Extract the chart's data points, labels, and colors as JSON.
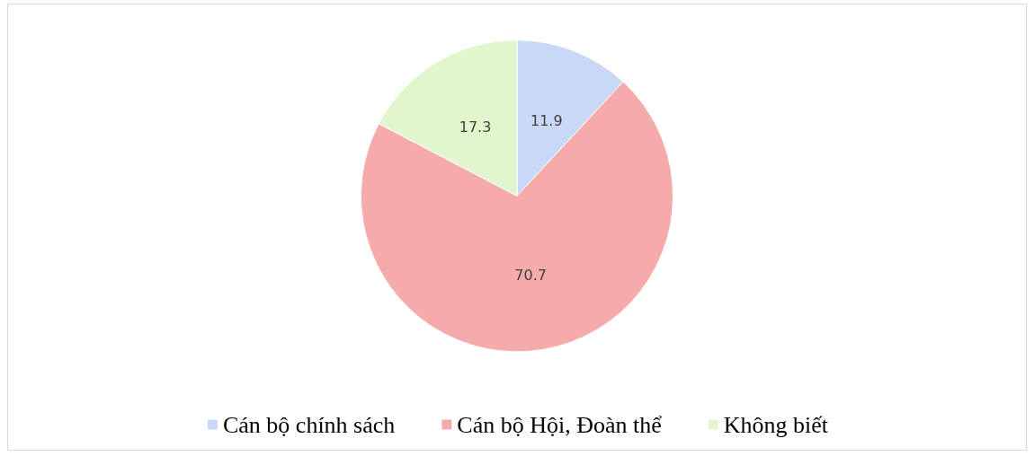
{
  "chart_data": {
    "type": "pie",
    "categories": [
      "Cán bộ chính sách",
      "Cán bộ Hội, Đoàn thể",
      "Không biết"
    ],
    "values": [
      11.9,
      70.7,
      17.3
    ],
    "colors": [
      "#c9d8f6",
      "#f6abab",
      "#e2f6cc"
    ],
    "data_labels": true,
    "legend": "bottom"
  }
}
